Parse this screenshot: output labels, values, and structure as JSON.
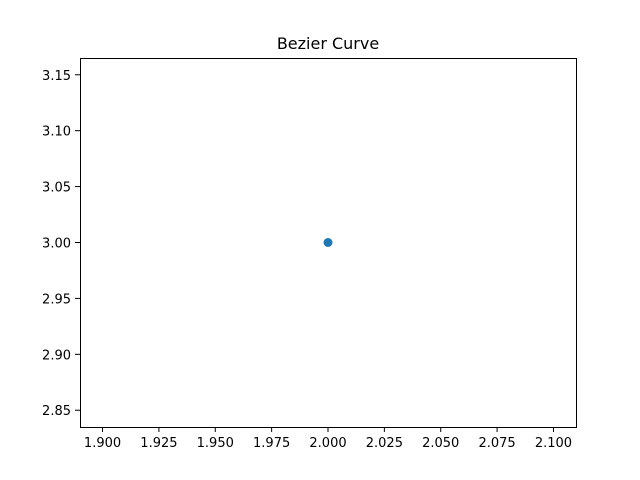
{
  "chart_data": {
    "type": "scatter",
    "title": "Bezier Curve",
    "xlabel": "",
    "ylabel": "",
    "xlim": [
      1.89,
      2.11
    ],
    "ylim": [
      2.835,
      3.165
    ],
    "x_ticks": [
      1.9,
      1.925,
      1.95,
      1.975,
      2.0,
      2.025,
      2.05,
      2.075,
      2.1
    ],
    "x_tick_labels": [
      "1.900",
      "1.925",
      "1.950",
      "1.975",
      "2.000",
      "2.025",
      "2.050",
      "2.075",
      "2.100"
    ],
    "y_ticks": [
      2.85,
      2.9,
      2.95,
      3.0,
      3.05,
      3.1,
      3.15
    ],
    "y_tick_labels": [
      "2.85",
      "2.90",
      "2.95",
      "3.00",
      "3.05",
      "3.10",
      "3.15"
    ],
    "grid": false,
    "series": [
      {
        "color": "#1f77b4",
        "points": [
          {
            "x": 2.0,
            "y": 3.0
          }
        ]
      }
    ]
  }
}
